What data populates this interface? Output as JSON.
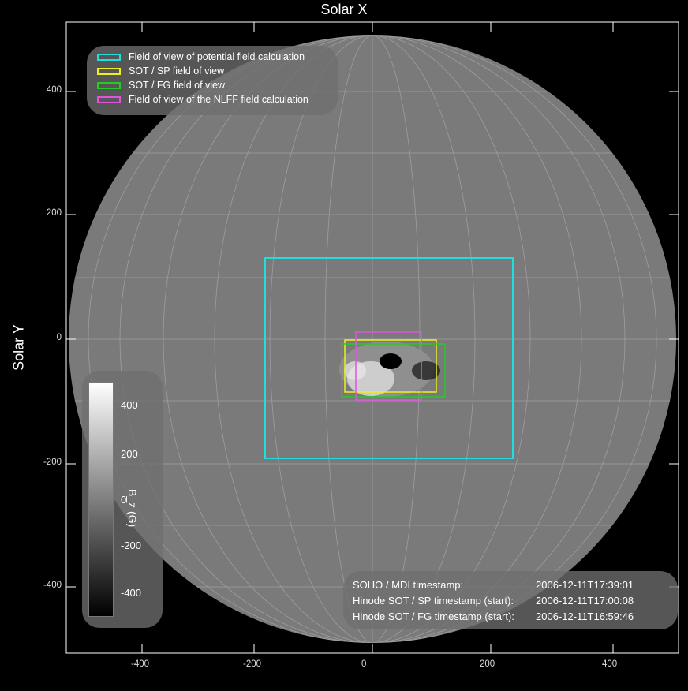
{
  "title": "Solar X",
  "ylabel": "Solar Y",
  "x_ticks": [
    "-400",
    "-200",
    "0",
    "200",
    "400"
  ],
  "y_ticks": [
    "400",
    "200",
    "0",
    "-200",
    "-400"
  ],
  "legend": [
    {
      "label": "Field of view of potential field calculation",
      "color": "#22dddd"
    },
    {
      "label": "SOT / SP field of view",
      "color": "#eeee22"
    },
    {
      "label": "SOT / FG field of view",
      "color": "#22cc22"
    },
    {
      "label": "Field of view of the NLFF field calculation",
      "color": "#dd55dd"
    }
  ],
  "timestamps": [
    {
      "label": "SOHO / MDI timestamp:",
      "value": "2006-12-11T17:39:01"
    },
    {
      "label": "Hinode SOT / SP timestamp (start):",
      "value": "2006-12-11T17:00:08"
    },
    {
      "label": "Hinode SOT / FG timestamp (start):",
      "value": "2006-12-11T16:59:46"
    }
  ],
  "colorbar": {
    "label": "B_z (G)",
    "ticks": [
      "400",
      "200",
      "0",
      "-200",
      "-400"
    ]
  }
}
